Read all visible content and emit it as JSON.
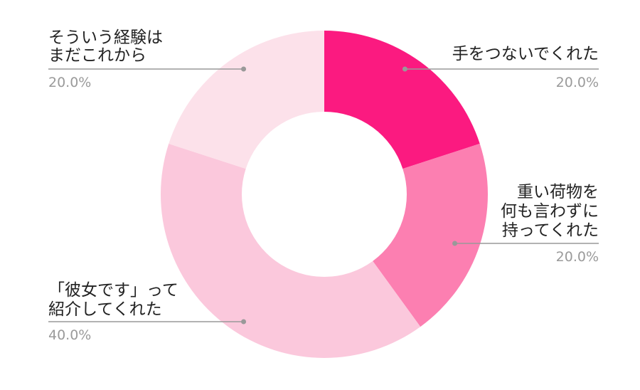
{
  "chart_data": {
    "type": "pie",
    "donut": true,
    "title": "",
    "legend": "none",
    "slices": [
      {
        "label": [
          "手をつないでくれた"
        ],
        "value": 20.0,
        "percent_label": "20.0%",
        "color": "#fb1a80"
      },
      {
        "label": [
          "重い荷物を",
          "何も言わずに",
          "持ってくれた"
        ],
        "value": 20.0,
        "percent_label": "20.0%",
        "color": "#fc7fb1"
      },
      {
        "label": [
          "「彼女です」って",
          "紹介してくれた"
        ],
        "value": 40.0,
        "percent_label": "40.0%",
        "color": "#fbc8dc"
      },
      {
        "label": [
          "そういう経験は",
          "まだこれから"
        ],
        "value": 20.0,
        "percent_label": "20.0%",
        "color": "#fce1ea"
      }
    ]
  }
}
